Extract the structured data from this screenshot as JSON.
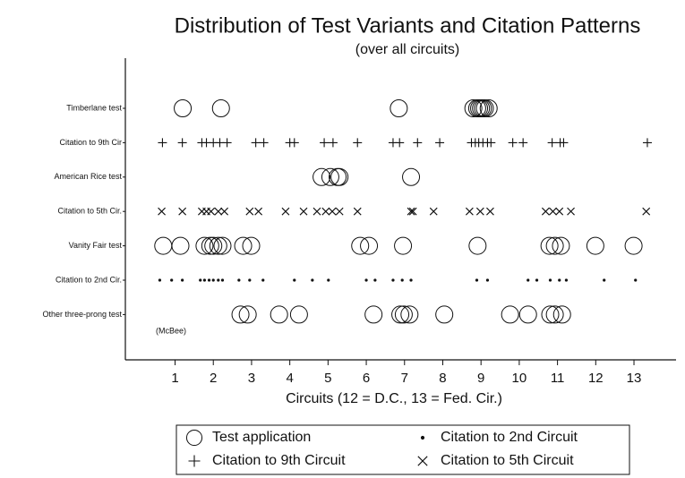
{
  "chart_data": {
    "type": "scatter",
    "title": "Distribution of Test Variants and Citation Patterns",
    "subtitle": "(over all circuits)",
    "xlabel": "Circuits (12 = D.C., 13 = Fed. Cir.)",
    "annotation": "(McBee)",
    "y_categories": [
      "Timberlane test",
      "Citation to 9th Cir",
      "American Rice test",
      "Citation to 5th Cir.",
      "Vanity Fair test",
      "Citation to 2nd Cir.",
      "Other three-prong test"
    ],
    "xlim": [
      -0.3,
      14.1
    ],
    "xticks": [
      1,
      2,
      3,
      4,
      5,
      6,
      7,
      8,
      9,
      10,
      11,
      12,
      13
    ],
    "series": [
      {
        "name": "Test application",
        "marker": "circle",
        "color": "#111111",
        "x": [
          1.2,
          2.2,
          6.85,
          8.8,
          8.9,
          8.95,
          9.0,
          9.05,
          9.1,
          9.2,
          4.83,
          5.06,
          5.25,
          5.3,
          7.17,
          0.69,
          1.14,
          1.77,
          1.92,
          2.0,
          2.13,
          2.24,
          2.78,
          2.99,
          5.84,
          6.07,
          6.96,
          8.91,
          10.79,
          10.93,
          11.09,
          11.99,
          12.99,
          2.71,
          2.9,
          3.72,
          4.24,
          6.19,
          6.89,
          6.98,
          7.13,
          8.04,
          9.76,
          10.23,
          10.81,
          10.93,
          11.12
        ],
        "y": [
          "Timberlane test",
          "Timberlane test",
          "Timberlane test",
          "Timberlane test",
          "Timberlane test",
          "Timberlane test",
          "Timberlane test",
          "Timberlane test",
          "Timberlane test",
          "Timberlane test",
          "American Rice test",
          "American Rice test",
          "American Rice test",
          "American Rice test",
          "American Rice test",
          "Vanity Fair test",
          "Vanity Fair test",
          "Vanity Fair test",
          "Vanity Fair test",
          "Vanity Fair test",
          "Vanity Fair test",
          "Vanity Fair test",
          "Vanity Fair test",
          "Vanity Fair test",
          "Vanity Fair test",
          "Vanity Fair test",
          "Vanity Fair test",
          "Vanity Fair test",
          "Vanity Fair test",
          "Vanity Fair test",
          "Vanity Fair test",
          "Vanity Fair test",
          "Vanity Fair test",
          "Other three-prong test",
          "Other three-prong test",
          "Other three-prong test",
          "Other three-prong test",
          "Other three-prong test",
          "Other three-prong test",
          "Other three-prong test",
          "Other three-prong test",
          "Other three-prong test",
          "Other three-prong test",
          "Other three-prong test",
          "Other three-prong test",
          "Other three-prong test",
          "Other three-prong test"
        ]
      },
      {
        "name": "Citation to 9th Circuit",
        "marker": "plus",
        "color": "#111111",
        "x": [
          0.67,
          1.19,
          1.7,
          1.82,
          2.0,
          2.17,
          2.36,
          3.11,
          3.32,
          4.0,
          4.12,
          4.9,
          5.13,
          5.77,
          6.7,
          6.87,
          7.34,
          7.92,
          8.75,
          8.85,
          8.94,
          9.05,
          9.17,
          9.26,
          9.83,
          10.1,
          10.86,
          11.07,
          11.16,
          13.35
        ],
        "y": [
          "Citation to 9th Cir",
          "Citation to 9th Cir",
          "Citation to 9th Cir",
          "Citation to 9th Cir",
          "Citation to 9th Cir",
          "Citation to 9th Cir",
          "Citation to 9th Cir",
          "Citation to 9th Cir",
          "Citation to 9th Cir",
          "Citation to 9th Cir",
          "Citation to 9th Cir",
          "Citation to 9th Cir",
          "Citation to 9th Cir",
          "Citation to 9th Cir",
          "Citation to 9th Cir",
          "Citation to 9th Cir",
          "Citation to 9th Cir",
          "Citation to 9th Cir",
          "Citation to 9th Cir",
          "Citation to 9th Cir",
          "Citation to 9th Cir",
          "Citation to 9th Cir",
          "Citation to 9th Cir",
          "Citation to 9th Cir",
          "Citation to 9th Cir",
          "Citation to 9th Cir",
          "Citation to 9th Cir",
          "Citation to 9th Cir",
          "Citation to 9th Cir",
          "Citation to 9th Cir"
        ]
      },
      {
        "name": "Citation to 2nd Circuit",
        "marker": "dot",
        "color": "#111111",
        "x": [
          0.6,
          0.91,
          1.19,
          1.66,
          1.77,
          1.89,
          2.0,
          2.13,
          2.24,
          2.67,
          2.95,
          3.3,
          4.12,
          4.59,
          5.01,
          6.0,
          6.23,
          6.7,
          6.94,
          7.17,
          8.89,
          9.17,
          10.23,
          10.46,
          10.81,
          11.05,
          11.23,
          12.22,
          13.04
        ],
        "y": [
          "Citation to 2nd Cir.",
          "Citation to 2nd Cir.",
          "Citation to 2nd Cir.",
          "Citation to 2nd Cir.",
          "Citation to 2nd Cir.",
          "Citation to 2nd Cir.",
          "Citation to 2nd Cir.",
          "Citation to 2nd Cir.",
          "Citation to 2nd Cir.",
          "Citation to 2nd Cir.",
          "Citation to 2nd Cir.",
          "Citation to 2nd Cir.",
          "Citation to 2nd Cir.",
          "Citation to 2nd Cir.",
          "Citation to 2nd Cir.",
          "Citation to 2nd Cir.",
          "Citation to 2nd Cir.",
          "Citation to 2nd Cir.",
          "Citation to 2nd Cir.",
          "Citation to 2nd Cir.",
          "Citation to 2nd Cir.",
          "Citation to 2nd Cir.",
          "Citation to 2nd Cir.",
          "Citation to 2nd Cir.",
          "Citation to 2nd Cir.",
          "Citation to 2nd Cir.",
          "Citation to 2nd Cir.",
          "Citation to 2nd Cir.",
          "Citation to 2nd Cir."
        ]
      },
      {
        "name": "Citation to 5th Circuit",
        "marker": "cross",
        "color": "#111111",
        "x": [
          0.65,
          1.19,
          1.7,
          1.82,
          1.94,
          2.13,
          2.29,
          2.95,
          3.18,
          3.89,
          4.36,
          4.71,
          4.94,
          5.11,
          5.3,
          5.77,
          7.17,
          7.22,
          7.76,
          8.7,
          8.98,
          9.24,
          10.69,
          10.88,
          11.05,
          11.35,
          13.32
        ],
        "y": [
          "Citation to 5th Cir.",
          "Citation to 5th Cir.",
          "Citation to 5th Cir.",
          "Citation to 5th Cir.",
          "Citation to 5th Cir.",
          "Citation to 5th Cir.",
          "Citation to 5th Cir.",
          "Citation to 5th Cir.",
          "Citation to 5th Cir.",
          "Citation to 5th Cir.",
          "Citation to 5th Cir.",
          "Citation to 5th Cir.",
          "Citation to 5th Cir.",
          "Citation to 5th Cir.",
          "Citation to 5th Cir.",
          "Citation to 5th Cir.",
          "Citation to 5th Cir.",
          "Citation to 5th Cir.",
          "Citation to 5th Cir.",
          "Citation to 5th Cir.",
          "Citation to 5th Cir.",
          "Citation to 5th Cir.",
          "Citation to 5th Cir.",
          "Citation to 5th Cir.",
          "Citation to 5th Cir.",
          "Citation to 5th Cir.",
          "Citation to 5th Cir."
        ]
      }
    ]
  }
}
